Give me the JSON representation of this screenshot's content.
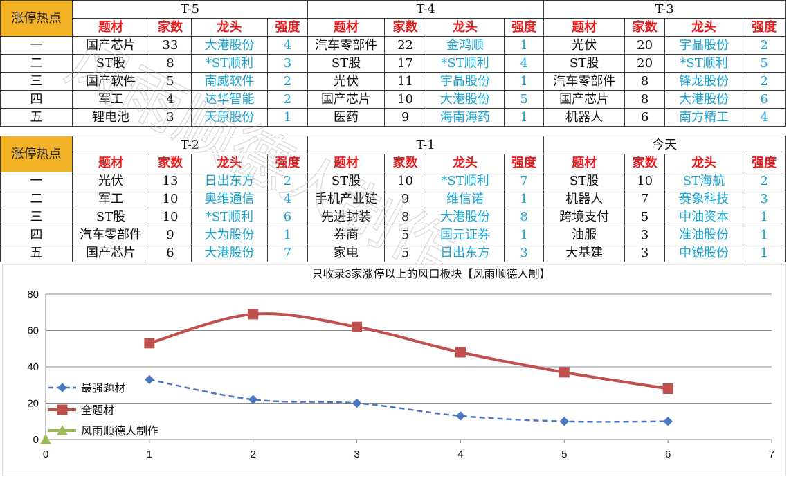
{
  "tables": [
    {
      "hot_label": "涨停热点",
      "headers": [
        "题材",
        "家数",
        "龙头",
        "强度"
      ],
      "ranks": [
        "一",
        "二",
        "三",
        "四",
        "五"
      ],
      "periods": [
        {
          "title": "T-5",
          "rows": [
            {
              "theme": "国产芯片",
              "count": "33",
              "leader": "大港股份",
              "strength": "4"
            },
            {
              "theme": "ST股",
              "count": "8",
              "leader": "*ST顺利",
              "strength": "3"
            },
            {
              "theme": "国产软件",
              "count": "5",
              "leader": "南威软件",
              "strength": "2"
            },
            {
              "theme": "军工",
              "count": "4",
              "leader": "达华智能",
              "strength": "2"
            },
            {
              "theme": "锂电池",
              "count": "3",
              "leader": "天原股份",
              "strength": "1"
            }
          ]
        },
        {
          "title": "T-4",
          "rows": [
            {
              "theme": "汽车零部件",
              "count": "22",
              "leader": "金鸿顺",
              "strength": "1"
            },
            {
              "theme": "ST股",
              "count": "17",
              "leader": "*ST顺利",
              "strength": "4"
            },
            {
              "theme": "光伏",
              "count": "11",
              "leader": "宇晶股份",
              "strength": "1"
            },
            {
              "theme": "国产芯片",
              "count": "10",
              "leader": "大港股份",
              "strength": "5"
            },
            {
              "theme": "医药",
              "count": "9",
              "leader": "海南海药",
              "strength": "1"
            }
          ]
        },
        {
          "title": "T-3",
          "rows": [
            {
              "theme": "光伏",
              "count": "20",
              "leader": "宇晶股份",
              "strength": "2"
            },
            {
              "theme": "ST股",
              "count": "20",
              "leader": "*ST顺利",
              "strength": "5"
            },
            {
              "theme": "汽车零部件",
              "count": "8",
              "leader": "锋龙股份",
              "strength": "2"
            },
            {
              "theme": "国产芯片",
              "count": "8",
              "leader": "大港股份",
              "strength": "6"
            },
            {
              "theme": "机器人",
              "count": "6",
              "leader": "南方精工",
              "strength": "4"
            }
          ]
        }
      ]
    },
    {
      "hot_label": "涨停热点",
      "headers": [
        "题材",
        "家数",
        "龙头",
        "强度"
      ],
      "ranks": [
        "一",
        "二",
        "三",
        "四",
        "五"
      ],
      "periods": [
        {
          "title": "T-2",
          "rows": [
            {
              "theme": "光伏",
              "count": "13",
              "leader": "日出东方",
              "strength": "2"
            },
            {
              "theme": "军工",
              "count": "10",
              "leader": "奥维通信",
              "strength": "4"
            },
            {
              "theme": "ST股",
              "count": "10",
              "leader": "*ST顺利",
              "strength": "6"
            },
            {
              "theme": "汽车零部件",
              "count": "9",
              "leader": "大为股份",
              "strength": "1"
            },
            {
              "theme": "国产芯片",
              "count": "6",
              "leader": "大港股份",
              "strength": "7"
            }
          ]
        },
        {
          "title": "T-1",
          "rows": [
            {
              "theme": "ST股",
              "count": "10",
              "leader": "*ST顺利",
              "strength": "7"
            },
            {
              "theme": "手机产业链",
              "count": "9",
              "leader": "维信诺",
              "strength": "1"
            },
            {
              "theme": "先进封装",
              "count": "8",
              "leader": "大港股份",
              "strength": "8"
            },
            {
              "theme": "券商",
              "count": "5",
              "leader": "国元证券",
              "strength": "1"
            },
            {
              "theme": "家电",
              "count": "5",
              "leader": "日出东方",
              "strength": "3"
            }
          ]
        },
        {
          "title": "今天",
          "rows": [
            {
              "theme": "ST股",
              "count": "10",
              "leader": "ST海航",
              "strength": "2"
            },
            {
              "theme": "机器人",
              "count": "7",
              "leader": "赛象科技",
              "strength": "3"
            },
            {
              "theme": "跨境支付",
              "count": "5",
              "leader": "中油资本",
              "strength": "1"
            },
            {
              "theme": "油服",
              "count": "3",
              "leader": "准油股份",
              "strength": "1"
            },
            {
              "theme": "大基建",
              "count": "3",
              "leader": "中锐股份",
              "strength": "1"
            }
          ]
        }
      ]
    }
  ],
  "watermark": "风雨顺德人制作",
  "chart_data": {
    "type": "line",
    "title": "只收录3家涨停以上的风口板块【风雨顺德人制】",
    "xlim": [
      0,
      7
    ],
    "ylim": [
      0,
      80
    ],
    "x_ticks": [
      0,
      1,
      2,
      3,
      4,
      5,
      6,
      7
    ],
    "y_ticks": [
      0,
      20,
      40,
      60,
      80
    ],
    "grid": "horizontal",
    "legend_position": "left",
    "series": [
      {
        "name": "最强题材",
        "x": [
          1,
          2,
          3,
          4,
          5,
          6
        ],
        "y": [
          33,
          22,
          20,
          13,
          10,
          10
        ],
        "color": "#4a77c2",
        "style": "dashed",
        "marker": "diamond"
      },
      {
        "name": "全题材",
        "x": [
          1,
          2,
          3,
          4,
          5,
          6
        ],
        "y": [
          53,
          69,
          62,
          48,
          37,
          28
        ],
        "color": "#c0504d",
        "style": "solid",
        "marker": "square"
      },
      {
        "name": "风雨顺德人制作",
        "x": [
          0
        ],
        "y": [
          0
        ],
        "color": "#9bbb59",
        "style": "solid",
        "marker": "triangle"
      }
    ]
  },
  "axis": {
    "x_ticks": [
      "0",
      "1",
      "2",
      "3",
      "4",
      "5",
      "6",
      "7"
    ],
    "y_ticks": [
      "0",
      "20",
      "40",
      "60",
      "80"
    ]
  }
}
